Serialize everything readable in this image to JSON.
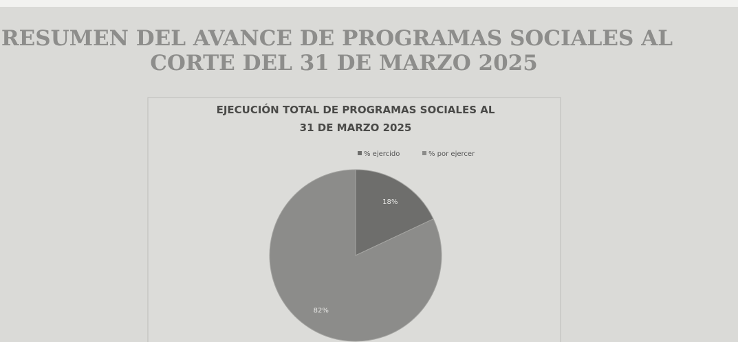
{
  "heading": [
    "RESUMEN DEL AVANCE DE PROGRAMAS SOCIALES AL",
    "CORTE DEL 31 DE MARZO 2025"
  ],
  "chart_data": {
    "type": "pie",
    "title": [
      "EJECUCIÓN TOTAL DE PROGRAMAS SOCIALES AL",
      "31 DE MARZO 2025"
    ],
    "categories": [
      "% ejercido",
      "% por ejercer"
    ],
    "values": [
      18,
      82
    ],
    "value_labels": [
      "18%",
      "82%"
    ],
    "colors": [
      "#6e6e6c",
      "#8c8c8a"
    ],
    "legend": "top"
  }
}
